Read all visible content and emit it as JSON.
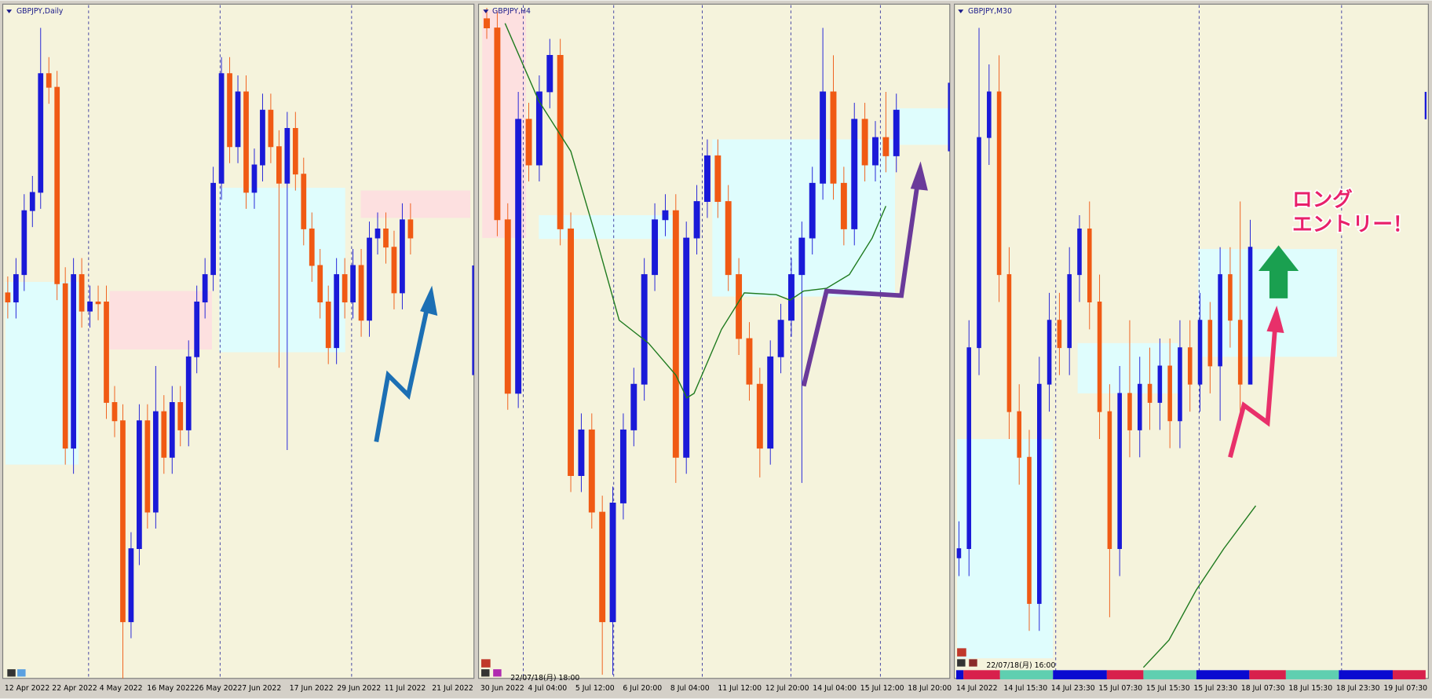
{
  "panels": [
    {
      "title": "GBPJPY,Daily",
      "x_labels": [
        "12 Apr 2022",
        "22 Apr 2022",
        "4 May 2022",
        "16 May 2022",
        "26 May 2022",
        "7 Jun 2022",
        "17 Jun 2022",
        "29 Jun 2022",
        "11 Jul 2022",
        "21 Jul 2022"
      ]
    },
    {
      "title": "GBPJPY,H4",
      "x_labels": [
        "30 Jun 2022",
        "4 Jul 04:00",
        "5 Jul 12:00",
        "6 Jul 20:00",
        "8 Jul 04:00",
        "11 Jul 12:00",
        "12 Jul 20:00",
        "14 Jul 04:00",
        "15 Jul 12:00",
        "18 Jul 20:00"
      ],
      "timestamp": "22/07/18(月) 18:00"
    },
    {
      "title": "GBPJPY,M30",
      "x_labels": [
        "14 Jul 2022",
        "14 Jul 15:30",
        "14 Jul 23:30",
        "15 Jul 07:30",
        "15 Jul 15:30",
        "15 Jul 23:30",
        "18 Jul 07:30",
        "18 Jul 15:30",
        "18 Jul 23:30",
        "19 Jul 07:30"
      ],
      "timestamp": "22/07/18(月) 16:00"
    }
  ],
  "annotation": {
    "lines": [
      "ロング",
      "エントリー！"
    ]
  }
}
